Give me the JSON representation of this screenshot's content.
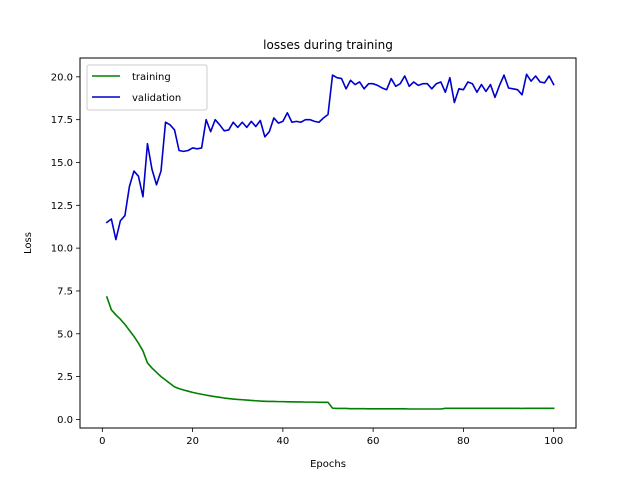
{
  "chart_data": {
    "type": "line",
    "title": "losses during training",
    "xlabel": "Epochs",
    "ylabel": "Loss",
    "xlim": [
      -4.95,
      104.95
    ],
    "ylim": [
      -0.5,
      21.1
    ],
    "xticks": [
      0,
      20,
      40,
      60,
      80,
      100
    ],
    "xtick_labels": [
      "0",
      "20",
      "40",
      "60",
      "80",
      "100"
    ],
    "yticks": [
      0.0,
      2.5,
      5.0,
      7.5,
      10.0,
      12.5,
      15.0,
      17.5,
      20.0
    ],
    "ytick_labels": [
      "0.0",
      "2.5",
      "5.0",
      "7.5",
      "10.0",
      "12.5",
      "15.0",
      "17.5",
      "20.0"
    ],
    "legend_position": "upper-left",
    "series": [
      {
        "name": "training",
        "color": "#008000",
        "x": [
          1,
          2,
          3,
          4,
          5,
          6,
          7,
          8,
          9,
          10,
          11,
          12,
          13,
          14,
          15,
          16,
          17,
          18,
          19,
          20,
          21,
          22,
          23,
          24,
          25,
          26,
          27,
          28,
          29,
          30,
          31,
          32,
          33,
          34,
          35,
          36,
          37,
          38,
          39,
          40,
          41,
          42,
          43,
          44,
          45,
          46,
          47,
          48,
          49,
          50,
          51,
          52,
          53,
          54,
          55,
          56,
          57,
          58,
          59,
          60,
          61,
          62,
          63,
          64,
          65,
          66,
          67,
          68,
          69,
          70,
          71,
          72,
          73,
          74,
          75,
          76,
          77,
          78,
          79,
          80,
          81,
          82,
          83,
          84,
          85,
          86,
          87,
          88,
          89,
          90,
          91,
          92,
          93,
          94,
          95,
          96,
          97,
          98,
          99,
          100
        ],
        "values": [
          7.15,
          6.4,
          6.1,
          5.85,
          5.55,
          5.2,
          4.85,
          4.45,
          4.0,
          3.3,
          3.0,
          2.75,
          2.5,
          2.3,
          2.1,
          1.9,
          1.8,
          1.72,
          1.65,
          1.58,
          1.52,
          1.47,
          1.42,
          1.37,
          1.33,
          1.29,
          1.25,
          1.22,
          1.19,
          1.17,
          1.15,
          1.13,
          1.11,
          1.09,
          1.07,
          1.06,
          1.05,
          1.05,
          1.04,
          1.04,
          1.03,
          1.03,
          1.02,
          1.02,
          1.01,
          1.01,
          1.01,
          1.0,
          1.0,
          1.0,
          0.66,
          0.64,
          0.64,
          0.64,
          0.63,
          0.63,
          0.63,
          0.63,
          0.62,
          0.62,
          0.62,
          0.62,
          0.62,
          0.62,
          0.62,
          0.62,
          0.62,
          0.61,
          0.61,
          0.61,
          0.61,
          0.61,
          0.61,
          0.61,
          0.61,
          0.65,
          0.65,
          0.65,
          0.65,
          0.65,
          0.65,
          0.65,
          0.65,
          0.65,
          0.65,
          0.65,
          0.65,
          0.65,
          0.65,
          0.65,
          0.65,
          0.65,
          0.64,
          0.65,
          0.65,
          0.65,
          0.65,
          0.65,
          0.65,
          0.65
        ]
      },
      {
        "name": "validation",
        "color": "#0000cc",
        "x": [
          1,
          2,
          3,
          4,
          5,
          6,
          7,
          8,
          9,
          10,
          11,
          12,
          13,
          14,
          15,
          16,
          17,
          18,
          19,
          20,
          21,
          22,
          23,
          24,
          25,
          26,
          27,
          28,
          29,
          30,
          31,
          32,
          33,
          34,
          35,
          36,
          37,
          38,
          39,
          40,
          41,
          42,
          43,
          44,
          45,
          46,
          47,
          48,
          49,
          50,
          51,
          52,
          53,
          54,
          55,
          56,
          57,
          58,
          59,
          60,
          61,
          62,
          63,
          64,
          65,
          66,
          67,
          68,
          69,
          70,
          71,
          72,
          73,
          74,
          75,
          76,
          77,
          78,
          79,
          80,
          81,
          82,
          83,
          84,
          85,
          86,
          87,
          88,
          89,
          90,
          91,
          92,
          93,
          94,
          95,
          96,
          97,
          98,
          99,
          100
        ],
        "values": [
          11.5,
          11.7,
          10.5,
          11.6,
          11.9,
          13.6,
          14.5,
          14.2,
          13.0,
          16.1,
          14.6,
          13.7,
          14.5,
          17.35,
          17.2,
          16.9,
          15.7,
          15.65,
          15.7,
          15.85,
          15.8,
          15.85,
          17.5,
          16.8,
          17.5,
          17.2,
          16.85,
          16.9,
          17.35,
          17.05,
          17.35,
          17.05,
          17.4,
          17.1,
          17.45,
          16.5,
          16.8,
          17.6,
          17.3,
          17.4,
          17.9,
          17.35,
          17.4,
          17.35,
          17.5,
          17.5,
          17.4,
          17.35,
          17.6,
          17.8,
          20.1,
          19.95,
          19.9,
          19.3,
          19.8,
          19.55,
          19.7,
          19.3,
          19.6,
          19.6,
          19.5,
          19.35,
          19.25,
          19.9,
          19.45,
          19.6,
          20.05,
          19.45,
          19.7,
          19.5,
          19.6,
          19.6,
          19.3,
          19.6,
          19.7,
          19.1,
          19.95,
          18.5,
          19.3,
          19.25,
          19.7,
          19.6,
          19.1,
          19.55,
          19.15,
          19.55,
          18.8,
          19.5,
          20.1,
          19.35,
          19.3,
          19.25,
          18.95,
          20.15,
          19.75,
          20.05,
          19.7,
          19.65,
          20.05,
          19.55
        ]
      }
    ]
  }
}
